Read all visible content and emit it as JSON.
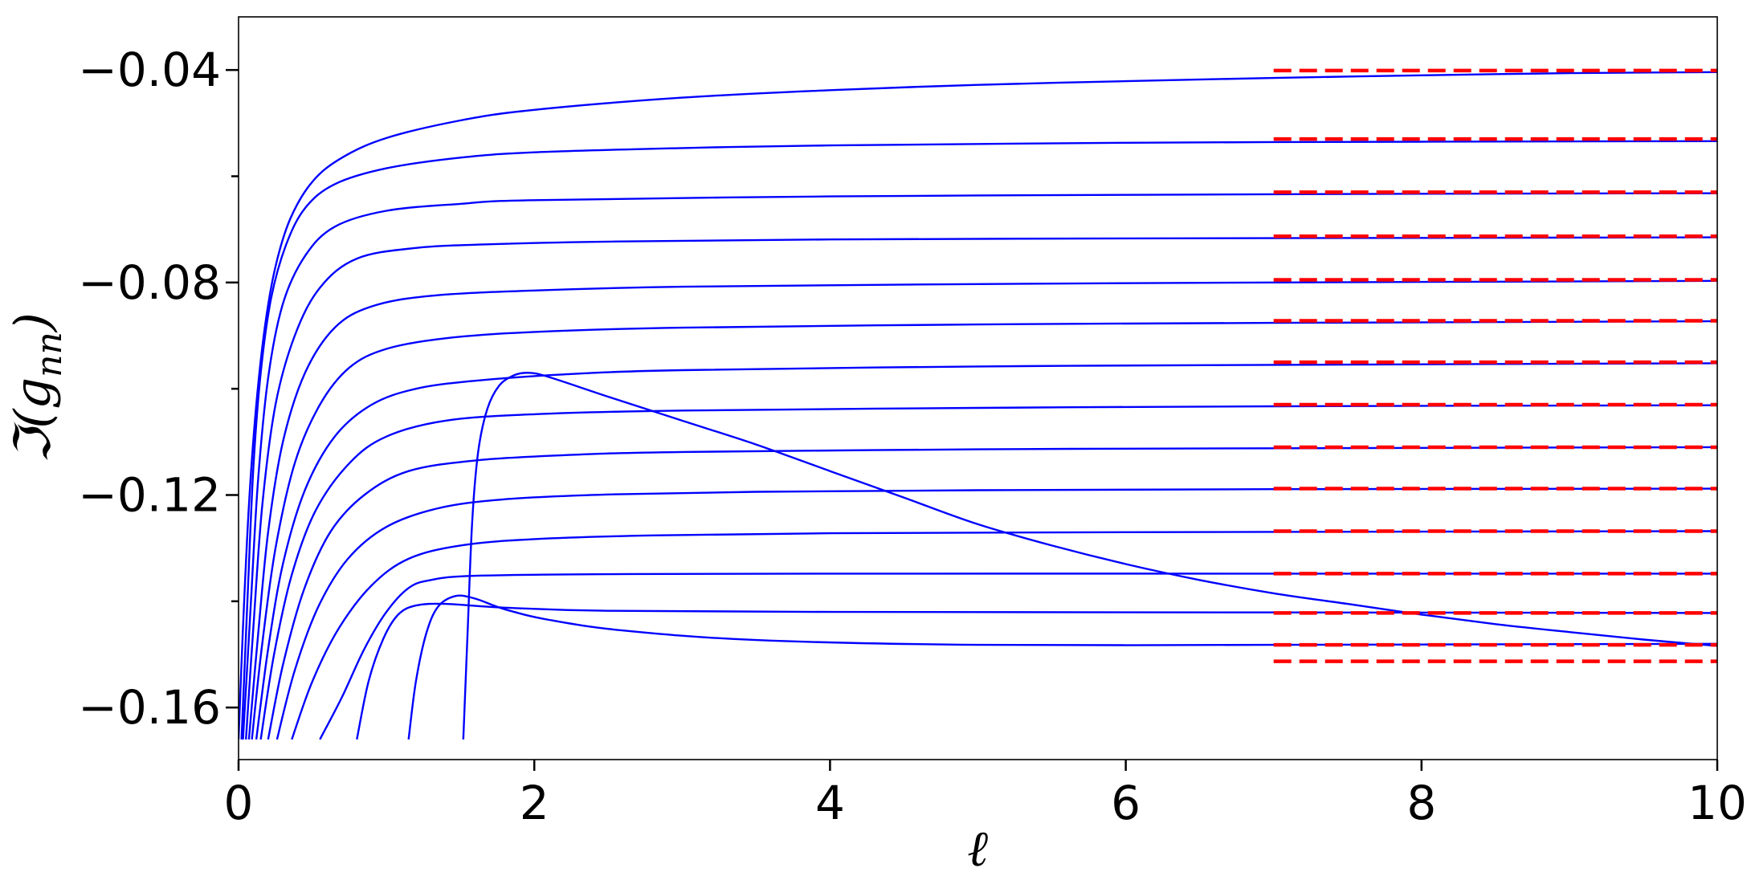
{
  "chart_data": {
    "type": "line",
    "title": "",
    "xlabel": "ℓ",
    "ylabel_prefix": "ℑ(g",
    "ylabel_sub": "nn",
    "ylabel_suffix": ")",
    "xlim": [
      0,
      10
    ],
    "ylim": [
      -0.1698,
      -0.03
    ],
    "x_ticks": [
      0,
      2,
      4,
      6,
      8,
      10
    ],
    "x_tick_labels": [
      "0",
      "2",
      "4",
      "6",
      "8",
      "10"
    ],
    "y_major_ticks": [
      -0.04,
      -0.08,
      -0.12,
      -0.16
    ],
    "y_tick_labels": [
      "−0.04",
      "−0.08",
      "−0.12",
      "−0.16"
    ],
    "y_minor_ticks": [
      -0.06,
      -0.1,
      -0.14
    ],
    "grid": false,
    "line_color": "#0000ff",
    "asymptote_color": "#ff0000",
    "asymptote_x_range": [
      7,
      10
    ],
    "asymptote_values": [
      -0.0401,
      -0.053,
      -0.063,
      -0.0713,
      -0.0795,
      -0.0872,
      -0.095,
      -0.103,
      -0.111,
      -0.1188,
      -0.1268,
      -0.1348,
      -0.1422,
      -0.1482,
      -0.1513
    ],
    "series": [
      {
        "points": [
          [
            0,
            -0.166
          ],
          [
            0.03,
            -0.145
          ],
          [
            0.07,
            -0.122
          ],
          [
            0.12,
            -0.103
          ],
          [
            0.18,
            -0.088
          ],
          [
            0.25,
            -0.077
          ],
          [
            0.35,
            -0.068
          ],
          [
            0.5,
            -0.061
          ],
          [
            0.7,
            -0.0565
          ],
          [
            1,
            -0.0528
          ],
          [
            1.5,
            -0.0495
          ],
          [
            2,
            -0.0475
          ],
          [
            3,
            -0.0452
          ],
          [
            4,
            -0.0438
          ],
          [
            5,
            -0.0428
          ],
          [
            6,
            -0.0421
          ],
          [
            7,
            -0.0415
          ],
          [
            8,
            -0.041
          ],
          [
            9,
            -0.0406
          ],
          [
            10,
            -0.0404
          ]
        ]
      },
      {
        "points": [
          [
            0.02,
            -0.166
          ],
          [
            0.06,
            -0.14
          ],
          [
            0.1,
            -0.115
          ],
          [
            0.15,
            -0.097
          ],
          [
            0.22,
            -0.083
          ],
          [
            0.32,
            -0.073
          ],
          [
            0.45,
            -0.066
          ],
          [
            0.65,
            -0.0615
          ],
          [
            1,
            -0.0585
          ],
          [
            1.5,
            -0.0565
          ],
          [
            2,
            -0.0555
          ],
          [
            3,
            -0.0547
          ],
          [
            4,
            -0.0542
          ],
          [
            6,
            -0.0537
          ],
          [
            8,
            -0.0535
          ],
          [
            10,
            -0.0534
          ]
        ]
      },
      {
        "points": [
          [
            0.03,
            -0.166
          ],
          [
            0.08,
            -0.142
          ],
          [
            0.13,
            -0.118
          ],
          [
            0.2,
            -0.098
          ],
          [
            0.3,
            -0.084
          ],
          [
            0.45,
            -0.075
          ],
          [
            0.65,
            -0.0695
          ],
          [
            1,
            -0.0665
          ],
          [
            1.5,
            -0.0652
          ],
          [
            2,
            -0.0645
          ],
          [
            4,
            -0.0638
          ],
          [
            6,
            -0.0635
          ],
          [
            8,
            -0.0633
          ],
          [
            10,
            -0.0632
          ]
        ]
      },
      {
        "points": [
          [
            0.05,
            -0.166
          ],
          [
            0.1,
            -0.145
          ],
          [
            0.16,
            -0.122
          ],
          [
            0.25,
            -0.103
          ],
          [
            0.38,
            -0.09
          ],
          [
            0.55,
            -0.081
          ],
          [
            0.8,
            -0.0755
          ],
          [
            1.2,
            -0.0735
          ],
          [
            1.7,
            -0.0728
          ],
          [
            2.5,
            -0.0723
          ],
          [
            4,
            -0.0719
          ],
          [
            6,
            -0.0717
          ],
          [
            8,
            -0.0716
          ],
          [
            10,
            -0.0715
          ]
        ]
      },
      {
        "points": [
          [
            0.07,
            -0.166
          ],
          [
            0.13,
            -0.147
          ],
          [
            0.2,
            -0.127
          ],
          [
            0.3,
            -0.11
          ],
          [
            0.45,
            -0.097
          ],
          [
            0.65,
            -0.0885
          ],
          [
            0.9,
            -0.0845
          ],
          [
            1.3,
            -0.0825
          ],
          [
            2,
            -0.0815
          ],
          [
            3,
            -0.0808
          ],
          [
            5,
            -0.0803
          ],
          [
            7,
            -0.08
          ],
          [
            10,
            -0.0797
          ]
        ]
      },
      {
        "points": [
          [
            0.09,
            -0.166
          ],
          [
            0.16,
            -0.148
          ],
          [
            0.25,
            -0.13
          ],
          [
            0.38,
            -0.114
          ],
          [
            0.55,
            -0.103
          ],
          [
            0.75,
            -0.096
          ],
          [
            1,
            -0.0925
          ],
          [
            1.4,
            -0.0905
          ],
          [
            2,
            -0.0893
          ],
          [
            3,
            -0.0885
          ],
          [
            5,
            -0.0879
          ],
          [
            7,
            -0.0876
          ],
          [
            10,
            -0.0873
          ]
        ]
      },
      {
        "points": [
          [
            0.12,
            -0.166
          ],
          [
            0.2,
            -0.149
          ],
          [
            0.3,
            -0.133
          ],
          [
            0.45,
            -0.119
          ],
          [
            0.65,
            -0.109
          ],
          [
            0.9,
            -0.103
          ],
          [
            1.2,
            -0.1
          ],
          [
            1.6,
            -0.0985
          ],
          [
            2.2,
            -0.0973
          ],
          [
            3,
            -0.0965
          ],
          [
            5,
            -0.0958
          ],
          [
            7,
            -0.0955
          ],
          [
            10,
            -0.0952
          ]
        ]
      },
      {
        "points": [
          [
            0.15,
            -0.166
          ],
          [
            0.24,
            -0.15
          ],
          [
            0.36,
            -0.135
          ],
          [
            0.52,
            -0.123
          ],
          [
            0.75,
            -0.114
          ],
          [
            1,
            -0.109
          ],
          [
            1.4,
            -0.106
          ],
          [
            2,
            -0.1048
          ],
          [
            3,
            -0.1041
          ],
          [
            5,
            -0.1036
          ],
          [
            7,
            -0.1033
          ],
          [
            10,
            -0.1031
          ]
        ]
      },
      {
        "points": [
          [
            0.2,
            -0.166
          ],
          [
            0.3,
            -0.152
          ],
          [
            0.44,
            -0.138
          ],
          [
            0.62,
            -0.127
          ],
          [
            0.85,
            -0.12
          ],
          [
            1.15,
            -0.1155
          ],
          [
            1.6,
            -0.1135
          ],
          [
            2.2,
            -0.1125
          ],
          [
            3,
            -0.1119
          ],
          [
            5,
            -0.1114
          ],
          [
            7,
            -0.1112
          ],
          [
            10,
            -0.111
          ]
        ]
      },
      {
        "points": [
          [
            0.26,
            -0.166
          ],
          [
            0.38,
            -0.153
          ],
          [
            0.54,
            -0.141
          ],
          [
            0.74,
            -0.132
          ],
          [
            1,
            -0.126
          ],
          [
            1.35,
            -0.1225
          ],
          [
            1.8,
            -0.1208
          ],
          [
            2.5,
            -0.1199
          ],
          [
            3.5,
            -0.1194
          ],
          [
            5,
            -0.1191
          ],
          [
            7,
            -0.1189
          ],
          [
            10,
            -0.1188
          ]
        ]
      },
      {
        "points": [
          [
            0.36,
            -0.166
          ],
          [
            0.5,
            -0.155
          ],
          [
            0.68,
            -0.145
          ],
          [
            0.9,
            -0.137
          ],
          [
            1.15,
            -0.132
          ],
          [
            1.5,
            -0.1295
          ],
          [
            2,
            -0.1283
          ],
          [
            2.8,
            -0.1276
          ],
          [
            4,
            -0.1272
          ],
          [
            6,
            -0.127
          ],
          [
            8,
            -0.1269
          ],
          [
            10,
            -0.1268
          ]
        ]
      },
      {
        "points": [
          [
            0.55,
            -0.166
          ],
          [
            0.7,
            -0.158
          ],
          [
            0.85,
            -0.149
          ],
          [
            1,
            -0.142
          ],
          [
            1.15,
            -0.1375
          ],
          [
            1.3,
            -0.136
          ],
          [
            1.6,
            -0.1352
          ],
          [
            2.5,
            -0.1349
          ],
          [
            4,
            -0.1348
          ],
          [
            7,
            -0.1348
          ],
          [
            10,
            -0.1348
          ]
        ]
      },
      {
        "points": [
          [
            0.8,
            -0.166
          ],
          [
            0.88,
            -0.155
          ],
          [
            0.98,
            -0.147
          ],
          [
            1.08,
            -0.1425
          ],
          [
            1.2,
            -0.1408
          ],
          [
            1.4,
            -0.1405
          ],
          [
            1.8,
            -0.1412
          ],
          [
            2.5,
            -0.1418
          ],
          [
            4,
            -0.142
          ],
          [
            7,
            -0.1421
          ],
          [
            10,
            -0.1422
          ]
        ]
      },
      {
        "points": [
          [
            1.15,
            -0.166
          ],
          [
            1.2,
            -0.155
          ],
          [
            1.27,
            -0.146
          ],
          [
            1.35,
            -0.141
          ],
          [
            1.47,
            -0.139
          ],
          [
            1.6,
            -0.1395
          ],
          [
            1.8,
            -0.1415
          ],
          [
            2.1,
            -0.1435
          ],
          [
            2.6,
            -0.1455
          ],
          [
            3.5,
            -0.1473
          ],
          [
            5,
            -0.1482
          ],
          [
            7,
            -0.1482
          ],
          [
            8.5,
            -0.1481
          ],
          [
            10,
            -0.148
          ]
        ]
      },
      {
        "points": [
          [
            1.52,
            -0.166
          ],
          [
            1.55,
            -0.145
          ],
          [
            1.58,
            -0.125
          ],
          [
            1.62,
            -0.112
          ],
          [
            1.68,
            -0.104
          ],
          [
            1.76,
            -0.0995
          ],
          [
            1.86,
            -0.0975
          ],
          [
            1.96,
            -0.097
          ],
          [
            2.1,
            -0.0978
          ],
          [
            2.5,
            -0.1015
          ],
          [
            3,
            -0.106
          ],
          [
            3.5,
            -0.1105
          ],
          [
            4,
            -0.1155
          ],
          [
            4.5,
            -0.1205
          ],
          [
            5,
            -0.1255
          ],
          [
            5.5,
            -0.1295
          ],
          [
            6,
            -0.133
          ],
          [
            6.5,
            -0.136
          ],
          [
            7,
            -0.1385
          ],
          [
            7.5,
            -0.1405
          ],
          [
            8,
            -0.1425
          ],
          [
            8.5,
            -0.1443
          ],
          [
            9,
            -0.1458
          ],
          [
            9.5,
            -0.1472
          ],
          [
            10,
            -0.1484
          ]
        ]
      }
    ]
  }
}
